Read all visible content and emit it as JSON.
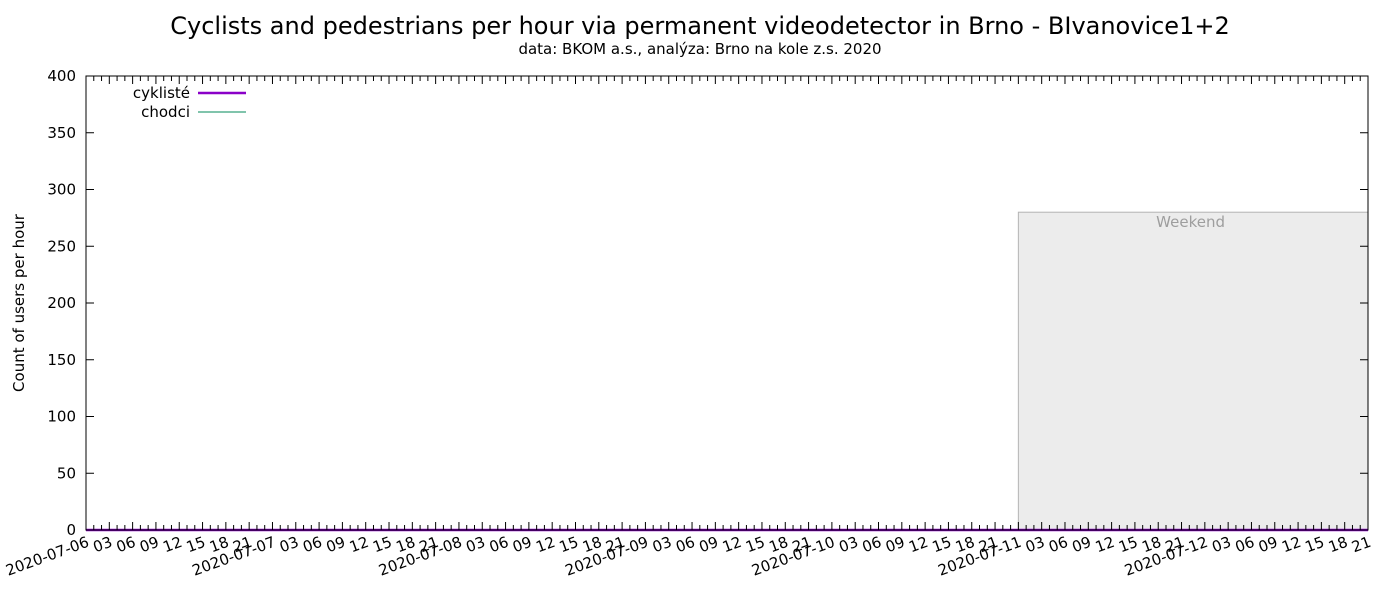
{
  "chart_data": {
    "type": "line",
    "title": "Cyclists and pedestrians per hour via permanent videodetector in Brno - BIvanovice1+2",
    "subtitle": "data: BKOM a.s., analýza: Brno na kole z.s. 2020",
    "xlabel": "",
    "ylabel": "Count of users per hour",
    "ylim": [
      0,
      400
    ],
    "y_ticks": [
      0,
      50,
      100,
      150,
      200,
      250,
      300,
      350,
      400
    ],
    "xlim": [
      "2020-07-06 00:00",
      "2020-07-12 21:00"
    ],
    "x_tick_labels": [
      "2020-07-06",
      "03",
      "06",
      "09",
      "12",
      "15",
      "18",
      "21",
      "2020-07-07",
      "03",
      "06",
      "09",
      "12",
      "15",
      "18",
      "21",
      "2020-07-08",
      "03",
      "06",
      "09",
      "12",
      "15",
      "18",
      "21",
      "2020-07-09",
      "03",
      "06",
      "09",
      "12",
      "15",
      "18",
      "21",
      "2020-07-10",
      "03",
      "06",
      "09",
      "12",
      "15",
      "18",
      "21",
      "2020-07-11",
      "03",
      "06",
      "09",
      "12",
      "15",
      "18",
      "21",
      "2020-07-12",
      "03",
      "06",
      "09",
      "12",
      "15",
      "18",
      "21"
    ],
    "grid": false,
    "legend_position": "top-left",
    "series": [
      {
        "name": "cyklisté",
        "color": "#8a00c8",
        "x": [
          "2020-07-06 00:00",
          "2020-07-12 21:00"
        ],
        "values": [
          0,
          0
        ]
      },
      {
        "name": "chodci",
        "color": "#008a5a",
        "x": [
          "2020-07-06 00:00",
          "2020-07-12 21:00"
        ],
        "values": [
          0,
          0
        ]
      }
    ],
    "annotations": [
      {
        "label": "Weekend",
        "x_start": "2020-07-11 00:00",
        "x_end": "2020-07-12 21:00",
        "y_top": 280,
        "fill": "#ececec"
      }
    ]
  }
}
